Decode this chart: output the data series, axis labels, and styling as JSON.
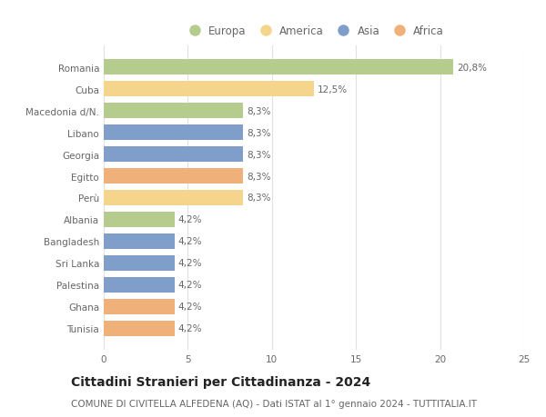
{
  "categories": [
    "Romania",
    "Cuba",
    "Macedonia d/N.",
    "Libano",
    "Georgia",
    "Egitto",
    "Perù",
    "Albania",
    "Bangladesh",
    "Sri Lanka",
    "Palestina",
    "Ghana",
    "Tunisia"
  ],
  "values": [
    20.8,
    12.5,
    8.3,
    8.3,
    8.3,
    8.3,
    8.3,
    4.2,
    4.2,
    4.2,
    4.2,
    4.2,
    4.2
  ],
  "labels": [
    "20,8%",
    "12,5%",
    "8,3%",
    "8,3%",
    "8,3%",
    "8,3%",
    "8,3%",
    "4,2%",
    "4,2%",
    "4,2%",
    "4,2%",
    "4,2%",
    "4,2%"
  ],
  "continents": [
    "Europa",
    "America",
    "Europa",
    "Asia",
    "Asia",
    "Africa",
    "America",
    "Europa",
    "Asia",
    "Asia",
    "Asia",
    "Africa",
    "Africa"
  ],
  "continent_colors": {
    "Europa": "#b5cc8e",
    "America": "#f5d48b",
    "Asia": "#7f9ec9",
    "Africa": "#f0b07a"
  },
  "legend_order": [
    "Europa",
    "America",
    "Asia",
    "Africa"
  ],
  "title": "Cittadini Stranieri per Cittadinanza - 2024",
  "subtitle": "COMUNE DI CIVITELLA ALFEDENA (AQ) - Dati ISTAT al 1° gennaio 2024 - TUTTITALIA.IT",
  "xlim": [
    0,
    25
  ],
  "xticks": [
    0,
    5,
    10,
    15,
    20,
    25
  ],
  "background_color": "#ffffff",
  "bar_height": 0.72,
  "title_fontsize": 10,
  "subtitle_fontsize": 7.5,
  "label_fontsize": 7.5,
  "tick_fontsize": 7.5,
  "legend_fontsize": 8.5,
  "grid_color": "#e0e0e0"
}
